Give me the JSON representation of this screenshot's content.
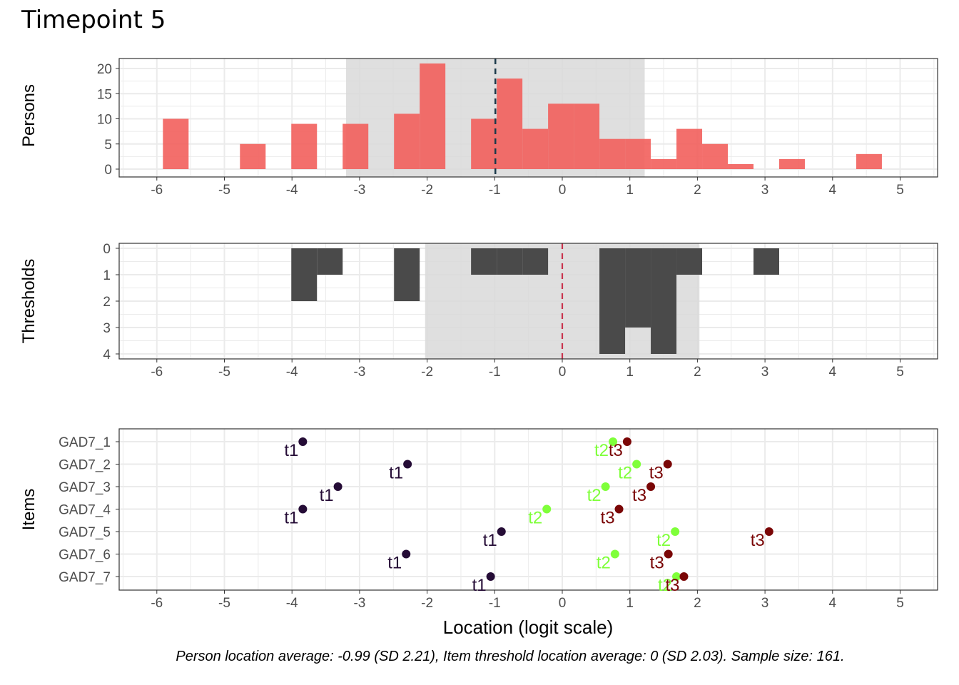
{
  "title": "Timepoint 5",
  "caption": "Person location average: -0.99 (SD 2.21), Item threshold location average: 0 (SD 2.03). Sample size: 161.",
  "colors": {
    "persons_bar": "#f25f5c",
    "persons_band": "#d9d9d9",
    "persons_mean_line": "#1b3a4b",
    "thresholds_bar": "#4a4a4a",
    "thresholds_mean_line": "#c8334d",
    "t1": "#250c36",
    "t2": "#7fff3a",
    "t3": "#7a0606"
  },
  "chart_data": [
    {
      "type": "bar",
      "panel": "persons",
      "ylabel": "Persons",
      "xlim": [
        -6.5,
        5.5
      ],
      "ylim": [
        0,
        21
      ],
      "xticks": [
        -6,
        -5,
        -4,
        -3,
        -2,
        -1,
        0,
        1,
        2,
        3,
        4,
        5
      ],
      "yticks": [
        0,
        5,
        10,
        15,
        20
      ],
      "bin_width": 0.38,
      "bins": [
        {
          "x": -5.72,
          "count": 10
        },
        {
          "x": -4.58,
          "count": 5
        },
        {
          "x": -3.82,
          "count": 9
        },
        {
          "x": -3.06,
          "count": 9
        },
        {
          "x": -2.3,
          "count": 11
        },
        {
          "x": -1.92,
          "count": 21
        },
        {
          "x": -1.16,
          "count": 10
        },
        {
          "x": -0.78,
          "count": 18
        },
        {
          "x": -0.4,
          "count": 8
        },
        {
          "x": -0.02,
          "count": 13
        },
        {
          "x": 0.36,
          "count": 13
        },
        {
          "x": 0.74,
          "count": 6
        },
        {
          "x": 1.12,
          "count": 6
        },
        {
          "x": 1.5,
          "count": 2
        },
        {
          "x": 1.88,
          "count": 8
        },
        {
          "x": 2.26,
          "count": 5
        },
        {
          "x": 2.64,
          "count": 1
        },
        {
          "x": 3.4,
          "count": 2
        },
        {
          "x": 4.54,
          "count": 3
        }
      ],
      "mean": -0.99,
      "sd": 2.21,
      "band": [
        -3.2,
        1.22
      ]
    },
    {
      "type": "bar",
      "panel": "thresholds",
      "ylabel": "Thresholds",
      "xlim": [
        -6.5,
        5.5
      ],
      "ylim": [
        0,
        4
      ],
      "y_reversed": true,
      "xticks": [
        -6,
        -5,
        -4,
        -3,
        -2,
        -1,
        0,
        1,
        2,
        3,
        4,
        5
      ],
      "yticks": [
        0,
        1,
        2,
        3,
        4
      ],
      "bin_width": 0.38,
      "bins": [
        {
          "x": -3.82,
          "count": 2
        },
        {
          "x": -3.44,
          "count": 1
        },
        {
          "x": -2.3,
          "count": 2
        },
        {
          "x": -1.16,
          "count": 1
        },
        {
          "x": -0.78,
          "count": 1
        },
        {
          "x": -0.4,
          "count": 1
        },
        {
          "x": 0.74,
          "count": 4
        },
        {
          "x": 1.12,
          "count": 3
        },
        {
          "x": 1.5,
          "count": 4
        },
        {
          "x": 1.88,
          "count": 1
        },
        {
          "x": 3.02,
          "count": 1
        }
      ],
      "mean": 0,
      "sd": 2.03,
      "band": [
        -2.03,
        2.03
      ]
    },
    {
      "type": "scatter",
      "panel": "items",
      "ylabel": "Items",
      "xlabel": "Location (logit scale)",
      "xlim": [
        -6.5,
        5.5
      ],
      "xticks": [
        -6,
        -5,
        -4,
        -3,
        -2,
        -1,
        0,
        1,
        2,
        3,
        4,
        5
      ],
      "items": [
        "GAD7_1",
        "GAD7_2",
        "GAD7_3",
        "GAD7_4",
        "GAD7_5",
        "GAD7_6",
        "GAD7_7"
      ],
      "series": [
        {
          "name": "t1",
          "values": [
            -3.84,
            -2.29,
            -3.32,
            -3.84,
            -0.9,
            -2.31,
            -1.06
          ]
        },
        {
          "name": "t2",
          "values": [
            0.75,
            1.1,
            0.64,
            -0.23,
            1.67,
            0.78,
            1.69
          ]
        },
        {
          "name": "t3",
          "values": [
            0.96,
            1.56,
            1.31,
            0.84,
            3.06,
            1.57,
            1.8
          ]
        }
      ]
    }
  ]
}
